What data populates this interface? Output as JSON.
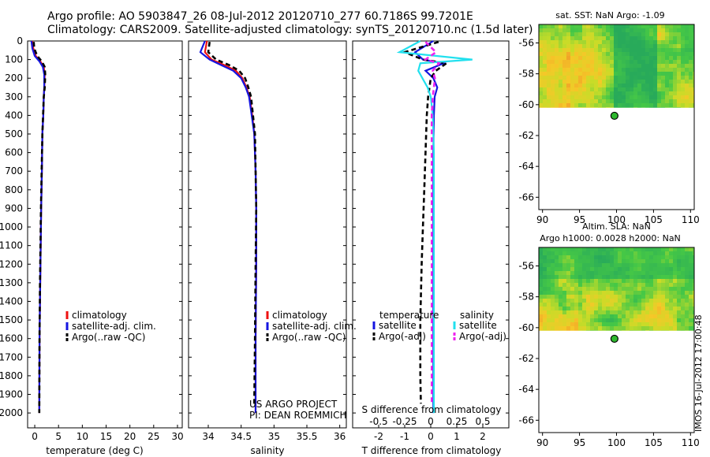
{
  "header": {
    "line1": "Argo profile: AO 5903847_26 08-Jul-2012 20120710_277 60.7186S 99.7201E",
    "line2": "Climatology: CARS2009. Satellite-adjusted climatology: synTS_20120710.nc (1.5d later)"
  },
  "credit": {
    "project": "US ARGO PROJECT",
    "pi": "PI: DEAN ROEMMICH"
  },
  "side_stamp": "IMOS 16-Jul-2012 17:00:48",
  "colors": {
    "climatology": "#ee1111",
    "satellite": "#1515e0",
    "argo": "#000000",
    "sat_salinity": "#22e0ee",
    "argo_salinity_diff": "#ee22ee"
  },
  "chart_data": [
    {
      "type": "line",
      "name": "temperature_profile",
      "xlabel": "temperature (deg C)",
      "ylim": [
        2080,
        0
      ],
      "xlim": [
        -1.5,
        31
      ],
      "xticks": [
        0,
        5,
        10,
        15,
        20,
        25,
        30
      ],
      "yticks": [
        0,
        100,
        200,
        300,
        400,
        500,
        600,
        700,
        800,
        900,
        1000,
        1100,
        1200,
        1300,
        1400,
        1500,
        1600,
        1700,
        1800,
        1900,
        2000
      ],
      "legend": {
        "placement": "lower-middle",
        "entries": [
          "climatology",
          "satellite-adj. clim.",
          "Argo(..raw -QC)"
        ]
      },
      "series": [
        {
          "name": "climatology",
          "color": "#ee1111",
          "x": [
            -0.5,
            -0.3,
            0.2,
            1.2,
            1.9,
            2.1,
            2.0,
            1.9,
            1.8,
            1.6,
            1.5,
            1.35,
            1.25,
            1.15,
            1.0,
            0.95
          ],
          "y": [
            0,
            40,
            80,
            110,
            140,
            180,
            250,
            300,
            400,
            500,
            700,
            900,
            1100,
            1300,
            1600,
            2000
          ]
        },
        {
          "name": "satellite-adj. clim.",
          "color": "#1515e0",
          "x": [
            -0.7,
            -0.5,
            0,
            1.0,
            1.7,
            2.0,
            2.0,
            1.9,
            1.8,
            1.6,
            1.5,
            1.35,
            1.25,
            1.15,
            1.0,
            0.95
          ],
          "y": [
            0,
            40,
            80,
            110,
            140,
            180,
            250,
            300,
            400,
            500,
            700,
            900,
            1100,
            1300,
            1600,
            2000
          ]
        },
        {
          "name": "Argo(..raw -QC)",
          "color": "#000000",
          "x": [
            -0.2,
            -0.1,
            0.5,
            1.5,
            2.1,
            2.2,
            2.1,
            1.9,
            1.75,
            1.6,
            1.45,
            1.3,
            1.2,
            1.1,
            1.0,
            0.95
          ],
          "y": [
            5,
            40,
            80,
            110,
            140,
            180,
            250,
            300,
            400,
            500,
            700,
            900,
            1100,
            1300,
            1600,
            2000
          ]
        }
      ]
    },
    {
      "type": "line",
      "name": "salinity_profile",
      "xlabel": "salinity",
      "ylim": [
        2080,
        0
      ],
      "xlim": [
        33.7,
        36.1
      ],
      "xticks": [
        34,
        34.5,
        35,
        35.5,
        36
      ],
      "legend": {
        "placement": "lower-middle",
        "entries": [
          "climatology",
          "satellite-adj. clim.",
          "Argo(..raw -QC)"
        ]
      },
      "series": [
        {
          "name": "climatology",
          "color": "#ee1111",
          "x": [
            33.98,
            33.95,
            34.05,
            34.25,
            34.42,
            34.52,
            34.58,
            34.63,
            34.67,
            34.7,
            34.72,
            34.73,
            34.73,
            34.72,
            34.72
          ],
          "y": [
            0,
            60,
            100,
            130,
            160,
            200,
            250,
            300,
            400,
            500,
            700,
            900,
            1200,
            1600,
            2000
          ]
        },
        {
          "name": "satellite-adj. clim.",
          "color": "#1515e0",
          "x": [
            33.95,
            33.88,
            34.02,
            34.2,
            34.38,
            34.5,
            34.57,
            34.62,
            34.66,
            34.7,
            34.72,
            34.73,
            34.73,
            34.72,
            34.72
          ],
          "y": [
            0,
            60,
            100,
            130,
            160,
            200,
            250,
            300,
            400,
            500,
            700,
            900,
            1200,
            1600,
            2000
          ]
        },
        {
          "name": "Argo(..raw -QC)",
          "color": "#000000",
          "x": [
            34.02,
            34.0,
            34.12,
            34.32,
            34.47,
            34.56,
            34.61,
            34.65,
            34.68,
            34.71,
            34.72,
            34.73,
            34.72,
            34.71,
            34.7
          ],
          "y": [
            5,
            60,
            100,
            130,
            160,
            200,
            250,
            300,
            400,
            500,
            700,
            900,
            1200,
            1600,
            1950
          ]
        }
      ]
    },
    {
      "type": "line",
      "name": "difference_from_climatology",
      "xlabel": "T difference from climatology",
      "xlabel_top": "S difference from climatology",
      "ylim": [
        2080,
        0
      ],
      "xlim": [
        -3,
        3
      ],
      "xticks": [
        -2,
        -1,
        0,
        1,
        2
      ],
      "sticks": [
        -0.5,
        -0.25,
        0,
        0.25,
        0.5
      ],
      "s_scale": 4,
      "legend": {
        "placement": "lower-middle",
        "headers": [
          "temperature",
          "salinity"
        ],
        "entries": [
          "satellite",
          "Argo(-adj)",
          "satellite",
          "Argo(-adj)"
        ]
      },
      "series": [
        {
          "name": "satellite",
          "group": "temperature",
          "color": "#1515e0",
          "x": [
            0.1,
            -0.6,
            -0.3,
            0.5,
            -0.2,
            0.1,
            0.25,
            0.15,
            0.12,
            0.1,
            0.1,
            0.1,
            0.1,
            0.1,
            0.1,
            0.1
          ],
          "y": [
            0,
            60,
            100,
            120,
            160,
            200,
            250,
            300,
            400,
            600,
            800,
            1000,
            1200,
            1500,
            1800,
            2000
          ]
        },
        {
          "name": "Argo(-adj)",
          "group": "temperature",
          "color": "#000000",
          "x": [
            0.3,
            -1.0,
            -0.3,
            0.6,
            0.2,
            0,
            -0.05,
            -0.1,
            -0.15,
            -0.2,
            -0.25,
            -0.3,
            -0.35,
            -0.4,
            -0.4,
            -0.38
          ],
          "y": [
            5,
            60,
            100,
            120,
            160,
            200,
            250,
            300,
            400,
            600,
            800,
            1000,
            1200,
            1500,
            1800,
            1950
          ]
        },
        {
          "name": "satellite",
          "group": "salinity",
          "color": "#22e0ee",
          "x": [
            -0.1,
            -0.3,
            0.4,
            -0.1,
            -0.12,
            -0.08,
            -0.03,
            0,
            0.02,
            0.03,
            0.03,
            0.03,
            0.03,
            0.03,
            0.03,
            0.03
          ],
          "y": [
            0,
            60,
            100,
            120,
            160,
            200,
            250,
            300,
            400,
            600,
            800,
            1000,
            1200,
            1500,
            1800,
            2000
          ]
        },
        {
          "name": "Argo(-adj)",
          "group": "salinity",
          "color": "#ee22ee",
          "x": [
            -0.05,
            0.05,
            -0.05,
            0.08,
            0.02,
            0.04,
            0.03,
            0.02,
            0.01,
            0.01,
            0.01,
            0.01,
            0.01,
            0.01,
            0.01,
            0.01
          ],
          "y": [
            5,
            60,
            100,
            120,
            160,
            200,
            250,
            300,
            400,
            600,
            800,
            1000,
            1200,
            1500,
            1800,
            1950
          ]
        }
      ]
    },
    {
      "type": "heatmap",
      "name": "sat_sst_map",
      "title": "sat. SST: NaN Argo: -1.09",
      "xlim": [
        89.5,
        110.5
      ],
      "ylim": [
        -66.8,
        -54.8
      ],
      "xticks": [
        90,
        95,
        100,
        105,
        110
      ],
      "yticks": [
        -56,
        -58,
        -60,
        -62,
        -64,
        -66
      ],
      "data_extent_lat": [
        -60.2,
        -54.8
      ],
      "marker": {
        "lon": 99.72,
        "lat": -60.72
      }
    },
    {
      "type": "heatmap",
      "name": "altim_sla_map",
      "title": "Altim. SLA: NaN",
      "subtitle": "Argo h1000: 0.0028 h2000: NaN",
      "xlim": [
        89.5,
        110.5
      ],
      "ylim": [
        -66.8,
        -54.8
      ],
      "xticks": [
        90,
        95,
        100,
        105,
        110
      ],
      "yticks": [
        -56,
        -58,
        -60,
        -62,
        -64,
        -66
      ],
      "data_extent_lat": [
        -60.2,
        -54.8
      ],
      "marker": {
        "lon": 99.72,
        "lat": -60.72
      }
    }
  ]
}
